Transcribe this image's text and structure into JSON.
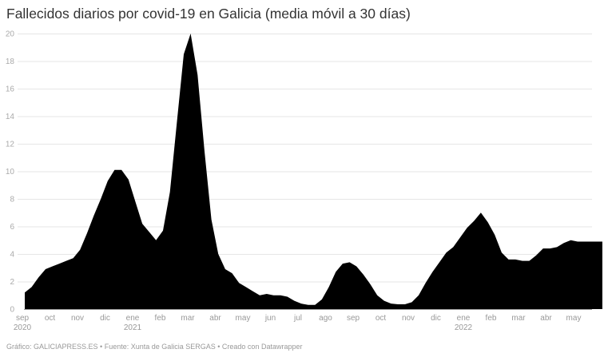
{
  "title": "Fallecidos diarios por covid-19 en Galicia (media móvil a 30 días)",
  "footer": "Gráfico: GALICIAPRESS.ES • Fuente: Xunta de Galicia SERGAS • Creado con Datawrapper",
  "colors": {
    "area": "#000000",
    "grid": "#e6e6e6",
    "axis": "#999999",
    "tick_text": "#999999"
  },
  "chart_data": {
    "type": "area",
    "title": "Fallecidos diarios por covid-19 en Galicia (media móvil a 30 días)",
    "xlabel": "",
    "ylabel": "",
    "ylim": [
      0,
      20
    ],
    "yticks": [
      0,
      2,
      4,
      6,
      8,
      10,
      12,
      14,
      16,
      18,
      20
    ],
    "grid": true,
    "legend": null,
    "xticks": [
      {
        "label": "sep",
        "year": "2020"
      },
      {
        "label": "oct",
        "year": ""
      },
      {
        "label": "nov",
        "year": ""
      },
      {
        "label": "dic",
        "year": ""
      },
      {
        "label": "ene",
        "year": "2021"
      },
      {
        "label": "feb",
        "year": ""
      },
      {
        "label": "mar",
        "year": ""
      },
      {
        "label": "abr",
        "year": ""
      },
      {
        "label": "may",
        "year": ""
      },
      {
        "label": "jun",
        "year": ""
      },
      {
        "label": "jul",
        "year": ""
      },
      {
        "label": "ago",
        "year": ""
      },
      {
        "label": "sep",
        "year": ""
      },
      {
        "label": "oct",
        "year": ""
      },
      {
        "label": "nov",
        "year": ""
      },
      {
        "label": "dic",
        "year": ""
      },
      {
        "label": "ene",
        "year": "2022"
      },
      {
        "label": "feb",
        "year": ""
      },
      {
        "label": "mar",
        "year": ""
      },
      {
        "label": "abr",
        "year": ""
      },
      {
        "label": "may",
        "year": ""
      }
    ],
    "x_months_from_start": [
      0,
      0.25,
      0.5,
      0.75,
      1,
      1.25,
      1.5,
      1.75,
      2,
      2.25,
      2.5,
      2.75,
      3,
      3.25,
      3.5,
      3.75,
      4,
      4.25,
      4.5,
      4.75,
      5,
      5.25,
      5.5,
      5.75,
      6,
      6.25,
      6.5,
      6.75,
      7,
      7.25,
      7.5,
      7.75,
      8,
      8.25,
      8.5,
      8.75,
      9,
      9.25,
      9.5,
      9.75,
      10,
      10.25,
      10.5,
      10.75,
      11,
      11.25,
      11.5,
      11.75,
      12,
      12.25,
      12.5,
      12.75,
      13,
      13.25,
      13.5,
      13.75,
      14,
      14.25,
      14.5,
      14.75,
      15,
      15.25,
      15.5,
      15.75,
      16,
      16.25,
      16.5,
      16.75,
      17,
      17.25,
      17.5,
      17.75,
      18,
      18.25,
      18.5,
      18.75,
      19,
      19.25,
      19.5,
      19.75,
      20,
      20.25,
      20.5,
      20.75
    ],
    "values": [
      1.2,
      1.6,
      2.3,
      2.9,
      3.1,
      3.3,
      3.5,
      3.7,
      4.3,
      5.5,
      6.8,
      8.0,
      9.3,
      10.1,
      10.1,
      9.4,
      7.8,
      6.2,
      5.6,
      5.0,
      5.7,
      8.5,
      13.5,
      18.5,
      20.0,
      17.0,
      11.5,
      6.5,
      4.0,
      2.9,
      2.6,
      1.9,
      1.6,
      1.3,
      1.0,
      1.1,
      1.0,
      1.0,
      0.9,
      0.6,
      0.4,
      0.3,
      0.3,
      0.7,
      1.6,
      2.7,
      3.3,
      3.4,
      3.1,
      2.5,
      1.8,
      1.0,
      0.6,
      0.4,
      0.35,
      0.35,
      0.5,
      1.0,
      1.9,
      2.7,
      3.4,
      4.1,
      4.5,
      5.2,
      5.9,
      6.4,
      7.0,
      6.3,
      5.4,
      4.1,
      3.6,
      3.6,
      3.5,
      3.5,
      3.9,
      4.4,
      4.4,
      4.5,
      4.8,
      5.0,
      4.9,
      4.9,
      4.9,
      4.9
    ]
  }
}
